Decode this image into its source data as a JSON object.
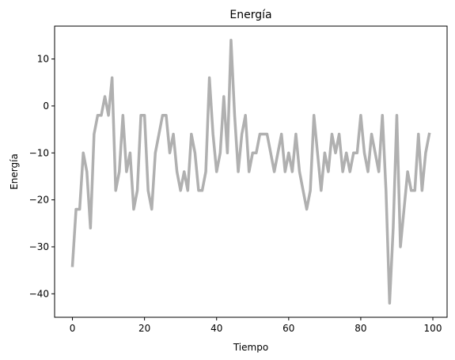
{
  "chart_data": {
    "type": "line",
    "title": "Energía",
    "xlabel": "Tiempo",
    "ylabel": "Energía",
    "xlim": [
      -4.95,
      103.95
    ],
    "ylim": [
      -45,
      17
    ],
    "xticks": [
      0,
      20,
      40,
      60,
      80,
      100
    ],
    "xtick_labels": [
      "0",
      "20",
      "40",
      "60",
      "80",
      "100"
    ],
    "yticks": [
      10,
      0,
      -10,
      -20,
      -30,
      -40
    ],
    "ytick_labels": [
      "10",
      "0",
      "−10",
      "−20",
      "−30",
      "−40"
    ],
    "grid": false,
    "series": [
      {
        "color": "#b0b0b0",
        "x": [
          0,
          1,
          2,
          3,
          4,
          5,
          6,
          7,
          8,
          9,
          10,
          11,
          12,
          13,
          14,
          15,
          16,
          17,
          18,
          19,
          20,
          21,
          22,
          23,
          24,
          25,
          26,
          27,
          28,
          29,
          30,
          31,
          32,
          33,
          34,
          35,
          36,
          37,
          38,
          39,
          40,
          41,
          42,
          43,
          44,
          45,
          46,
          47,
          48,
          49,
          50,
          51,
          52,
          53,
          54,
          55,
          56,
          57,
          58,
          59,
          60,
          61,
          62,
          63,
          64,
          65,
          66,
          67,
          68,
          69,
          70,
          71,
          72,
          73,
          74,
          75,
          76,
          77,
          78,
          79,
          80,
          81,
          82,
          83,
          84,
          85,
          86,
          87,
          88,
          89,
          90,
          91,
          92,
          93,
          94,
          95,
          96,
          97,
          98,
          99
        ],
        "y": [
          -34,
          -22,
          -22,
          -10,
          -14,
          -26,
          -6,
          -2,
          -2,
          2,
          -2,
          6,
          -18,
          -14,
          -2,
          -14,
          -10,
          -22,
          -18,
          -2,
          -2,
          -18,
          -22,
          -10,
          -6,
          -2,
          -2,
          -10,
          -6,
          -14,
          -18,
          -14,
          -18,
          -6,
          -10,
          -18,
          -18,
          -14,
          6,
          -6,
          -14,
          -10,
          2,
          -10,
          14,
          -2,
          -14,
          -6,
          -2,
          -14,
          -10,
          -10,
          -6,
          -6,
          -6,
          -10,
          -14,
          -10,
          -6,
          -14,
          -10,
          -14,
          -6,
          -14,
          -18,
          -22,
          -18,
          -2,
          -10,
          -18,
          -10,
          -14,
          -6,
          -10,
          -6,
          -14,
          -10,
          -14,
          -10,
          -10,
          -2,
          -10,
          -14,
          -6,
          -10,
          -14,
          -2,
          -18,
          -42,
          -26,
          -2,
          -30,
          -22,
          -14,
          -18,
          -18,
          -6,
          -18,
          -10,
          -6
        ]
      }
    ]
  }
}
